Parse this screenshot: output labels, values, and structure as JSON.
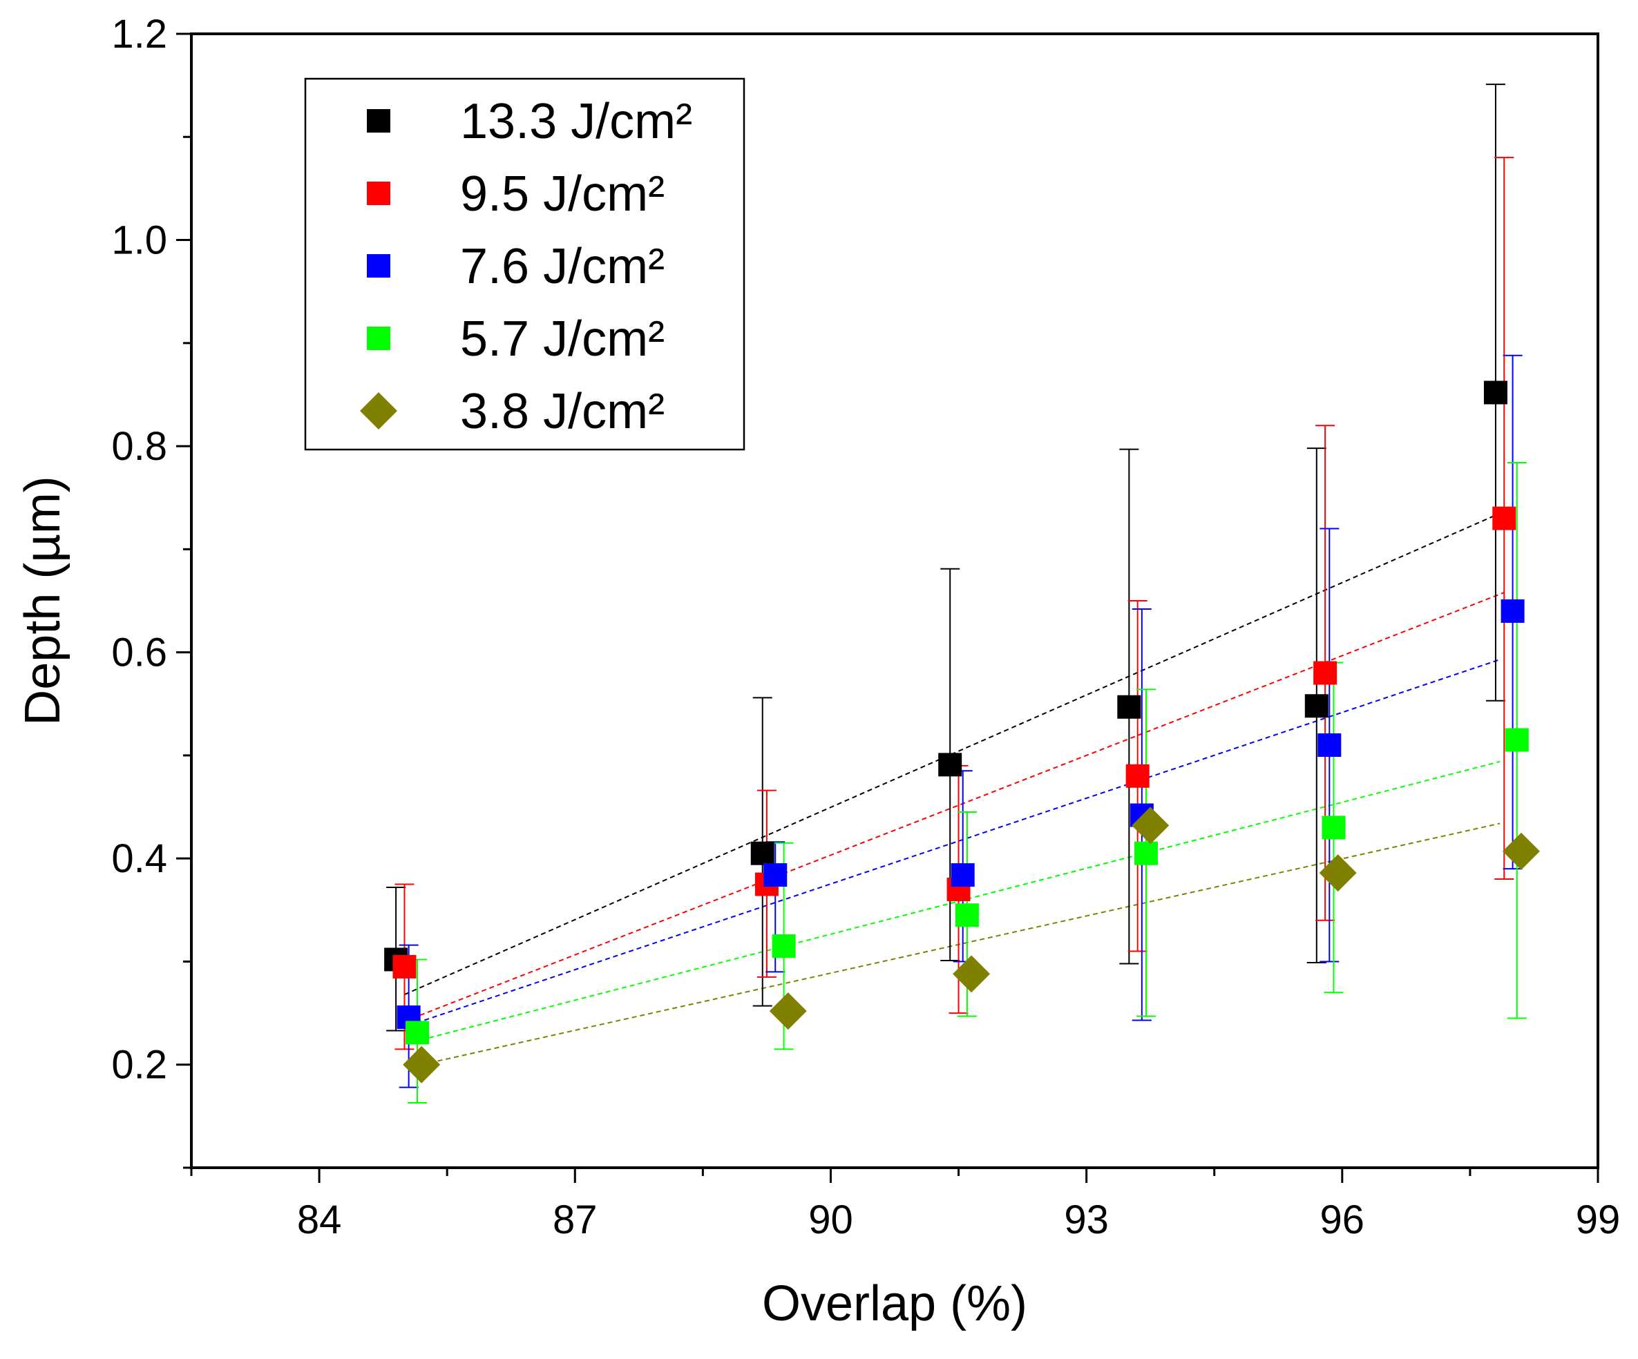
{
  "chart_data": {
    "type": "scatter",
    "title": "",
    "xlabel": "Overlap (%)",
    "ylabel": "Depth (µm)",
    "xlim": [
      82.5,
      99
    ],
    "ylim": [
      0.1,
      1.2
    ],
    "xticks": [
      84,
      87,
      90,
      93,
      96,
      99
    ],
    "xtick_labels": [
      "84",
      "87",
      "90",
      "93",
      "96",
      "99"
    ],
    "yticks": [
      0.2,
      0.4,
      0.6,
      0.8,
      1.0,
      1.2
    ],
    "ytick_labels": [
      "0.2",
      "0.4",
      "0.6",
      "0.8",
      "1.0",
      "1.2"
    ],
    "legend_position": "top-left",
    "series": [
      {
        "name": "13.3 J/cm²",
        "color": "#000000",
        "marker": "square",
        "x": [
          84.9,
          89.2,
          91.4,
          93.5,
          95.7,
          97.8
        ],
        "y": [
          0.302,
          0.405,
          0.491,
          0.547,
          0.548,
          0.852
        ],
        "err_low": [
          0.233,
          0.257,
          0.301,
          0.298,
          0.299,
          0.553
        ],
        "err_high": [
          0.372,
          0.556,
          0.681,
          0.797,
          0.798,
          1.151
        ],
        "trend": [
          [
            85.0,
            0.268
          ],
          [
            97.8,
            0.733
          ]
        ]
      },
      {
        "name": "9.5 J/cm²",
        "color": "#ff0000",
        "marker": "square",
        "x": [
          85.0,
          89.25,
          91.5,
          93.6,
          95.8,
          97.9
        ],
        "y": [
          0.295,
          0.375,
          0.37,
          0.48,
          0.58,
          0.73
        ],
        "err_low": [
          0.215,
          0.285,
          0.25,
          0.31,
          0.34,
          0.38
        ],
        "err_high": [
          0.375,
          0.466,
          0.49,
          0.65,
          0.82,
          1.08
        ],
        "trend": [
          [
            85.0,
            0.242
          ],
          [
            97.9,
            0.658
          ]
        ]
      },
      {
        "name": "7.6 J/cm²",
        "color": "#0000ff",
        "marker": "square",
        "x": [
          85.05,
          89.35,
          91.55,
          93.65,
          95.85,
          98.0
        ],
        "y": [
          0.246,
          0.384,
          0.384,
          0.442,
          0.51,
          0.64
        ],
        "err_low": [
          0.178,
          0.29,
          0.3,
          0.243,
          0.3,
          0.39
        ],
        "err_high": [
          0.316,
          0.416,
          0.485,
          0.642,
          0.72,
          0.888
        ],
        "trend": [
          [
            85.05,
            0.238
          ],
          [
            97.85,
            0.593
          ]
        ]
      },
      {
        "name": "5.7 J/cm²",
        "color": "#00ff00",
        "marker": "square",
        "x": [
          85.15,
          89.45,
          91.6,
          93.7,
          95.9,
          98.05
        ],
        "y": [
          0.231,
          0.315,
          0.345,
          0.405,
          0.43,
          0.515
        ],
        "err_low": [
          0.163,
          0.215,
          0.247,
          0.247,
          0.27,
          0.245
        ],
        "err_high": [
          0.302,
          0.415,
          0.445,
          0.564,
          0.59,
          0.784
        ],
        "trend": [
          [
            85.1,
            0.222
          ],
          [
            97.85,
            0.494
          ]
        ]
      },
      {
        "name": "3.8 J/cm²",
        "color": "#808000",
        "marker": "diamond",
        "x": [
          85.2,
          89.5,
          91.65,
          93.75,
          95.95,
          98.1
        ],
        "y": [
          0.2,
          0.252,
          0.288,
          0.432,
          0.386,
          0.407
        ],
        "err_low": [],
        "err_high": [],
        "trend": [
          [
            85.2,
            0.2
          ],
          [
            97.85,
            0.434
          ]
        ]
      }
    ]
  }
}
